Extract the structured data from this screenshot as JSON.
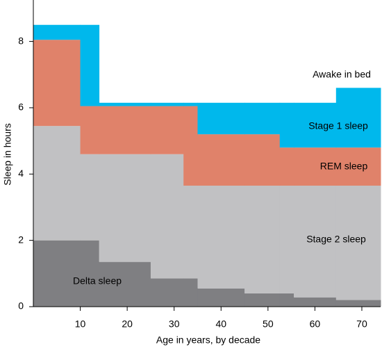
{
  "chart_data": {
    "type": "stacked-step-area",
    "xlabel": "Age in years, by decade",
    "ylabel": "Sleep in hours",
    "x_edges": [
      0,
      10,
      14,
      25,
      32,
      35,
      45,
      52.5,
      55.5,
      64.5,
      74
    ],
    "series": [
      {
        "name": "Delta sleep",
        "color": "#7f7f82",
        "values": [
          2.0,
          2.0,
          1.35,
          0.85,
          0.85,
          0.55,
          0.4,
          0.4,
          0.28,
          0.2
        ]
      },
      {
        "name": "Stage 2 sleep",
        "color": "#c1c1c3",
        "values": [
          3.45,
          2.6,
          3.25,
          3.75,
          2.8,
          3.1,
          3.25,
          3.25,
          3.37,
          3.45
        ]
      },
      {
        "name": "REM sleep",
        "color": "#e0826a",
        "values": [
          2.6,
          1.45,
          1.45,
          1.45,
          2.4,
          1.55,
          1.55,
          1.15,
          1.15,
          1.15
        ]
      },
      {
        "name": "Stage 1 sleep",
        "color": "#00b8ec",
        "values": [
          0.45,
          2.45,
          0.1,
          0.1,
          0.1,
          0.95,
          0.95,
          1.35,
          1.35,
          1.8
        ]
      }
    ],
    "annotations": [
      "Awake in bed"
    ],
    "xlim": [
      0,
      74
    ],
    "xticks": [
      10,
      20,
      30,
      40,
      50,
      60,
      70
    ],
    "ylim": [
      0,
      9.25
    ],
    "yticks": [
      0,
      2,
      4,
      6,
      8
    ]
  }
}
